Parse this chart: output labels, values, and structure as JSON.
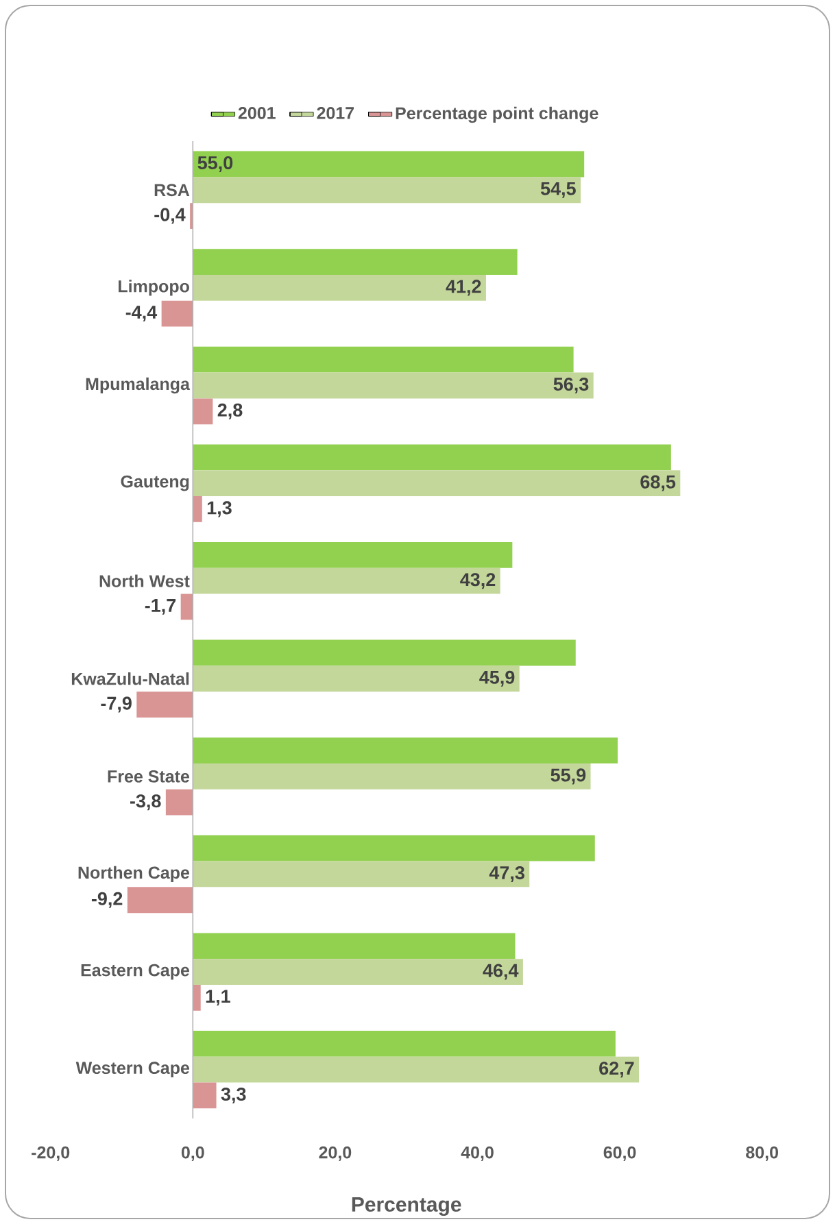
{
  "chart_data": {
    "type": "bar",
    "orientation": "horizontal",
    "xlabel": "Percentage",
    "categories": [
      "RSA",
      "Limpopo",
      "Mpumalanga",
      "Gauteng",
      "North West",
      "KwaZulu-Natal",
      "Free State",
      "Northen Cape",
      "Eastern Cape",
      "Western Cape"
    ],
    "series": [
      {
        "name": "2001",
        "color": "#92d050",
        "values": [
          55.0,
          45.6,
          53.5,
          67.2,
          44.9,
          53.8,
          59.7,
          56.5,
          45.3,
          59.4
        ],
        "value_labels": [
          "55,0",
          null,
          null,
          null,
          null,
          null,
          null,
          null,
          null,
          null
        ]
      },
      {
        "name": "2017",
        "color": "#c4d79b",
        "values": [
          54.5,
          41.2,
          56.3,
          68.5,
          43.2,
          45.9,
          55.9,
          47.3,
          46.4,
          62.7
        ],
        "value_labels": [
          "54,5",
          "41,2",
          "56,3",
          "68,5",
          "43,2",
          "45,9",
          "55,9",
          "47,3",
          "46,4",
          "62,7"
        ]
      },
      {
        "name": "Percentage point change",
        "color": "#d99594",
        "values": [
          -0.4,
          -4.4,
          2.8,
          1.3,
          -1.7,
          -7.9,
          -3.8,
          -9.2,
          1.1,
          3.3
        ],
        "value_labels": [
          "-0,4",
          "-4,4",
          "2,8",
          "1,3",
          "-1,7",
          "-7,9",
          "-3,8",
          "-9,2",
          "1,1",
          "3,3"
        ]
      }
    ],
    "xlim": [
      -20,
      80
    ],
    "xticks": [
      {
        "value": -20,
        "label": "-20,0"
      },
      {
        "value": 0,
        "label": "0,0"
      },
      {
        "value": 20,
        "label": "20,0"
      },
      {
        "value": 40,
        "label": "40,0"
      },
      {
        "value": 60,
        "label": "60,0"
      },
      {
        "value": 80,
        "label": "80,0"
      }
    ],
    "grid": false,
    "legend": "top"
  }
}
